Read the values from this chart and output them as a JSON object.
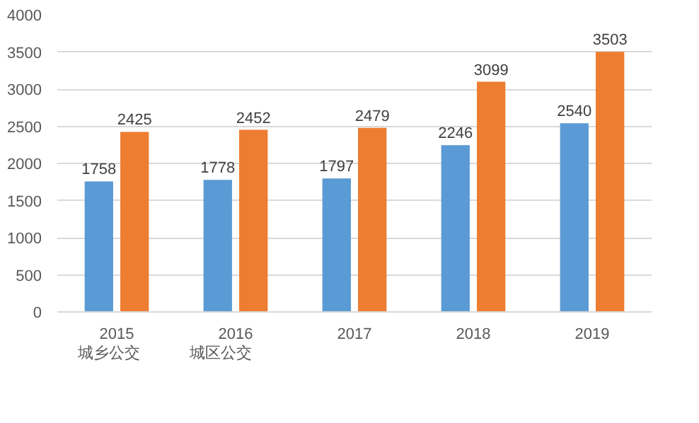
{
  "chart_data": {
    "type": "bar",
    "categories": [
      "2015",
      "2016",
      "2017",
      "2018",
      "2019"
    ],
    "series": [
      {
        "name": "城乡公交",
        "color": "#5b9bd5",
        "values": [
          1758,
          1778,
          1797,
          2246,
          2540
        ]
      },
      {
        "name": "城区公交",
        "color": "#ed7d31",
        "values": [
          2425,
          2452,
          2479,
          3099,
          3503
        ]
      }
    ],
    "ylim": [
      0,
      4000
    ],
    "yticks": [
      0,
      500,
      1000,
      1500,
      2000,
      2500,
      3000,
      3500,
      4000
    ],
    "grid": "y",
    "legend": "bottom left",
    "data_labels": true
  }
}
